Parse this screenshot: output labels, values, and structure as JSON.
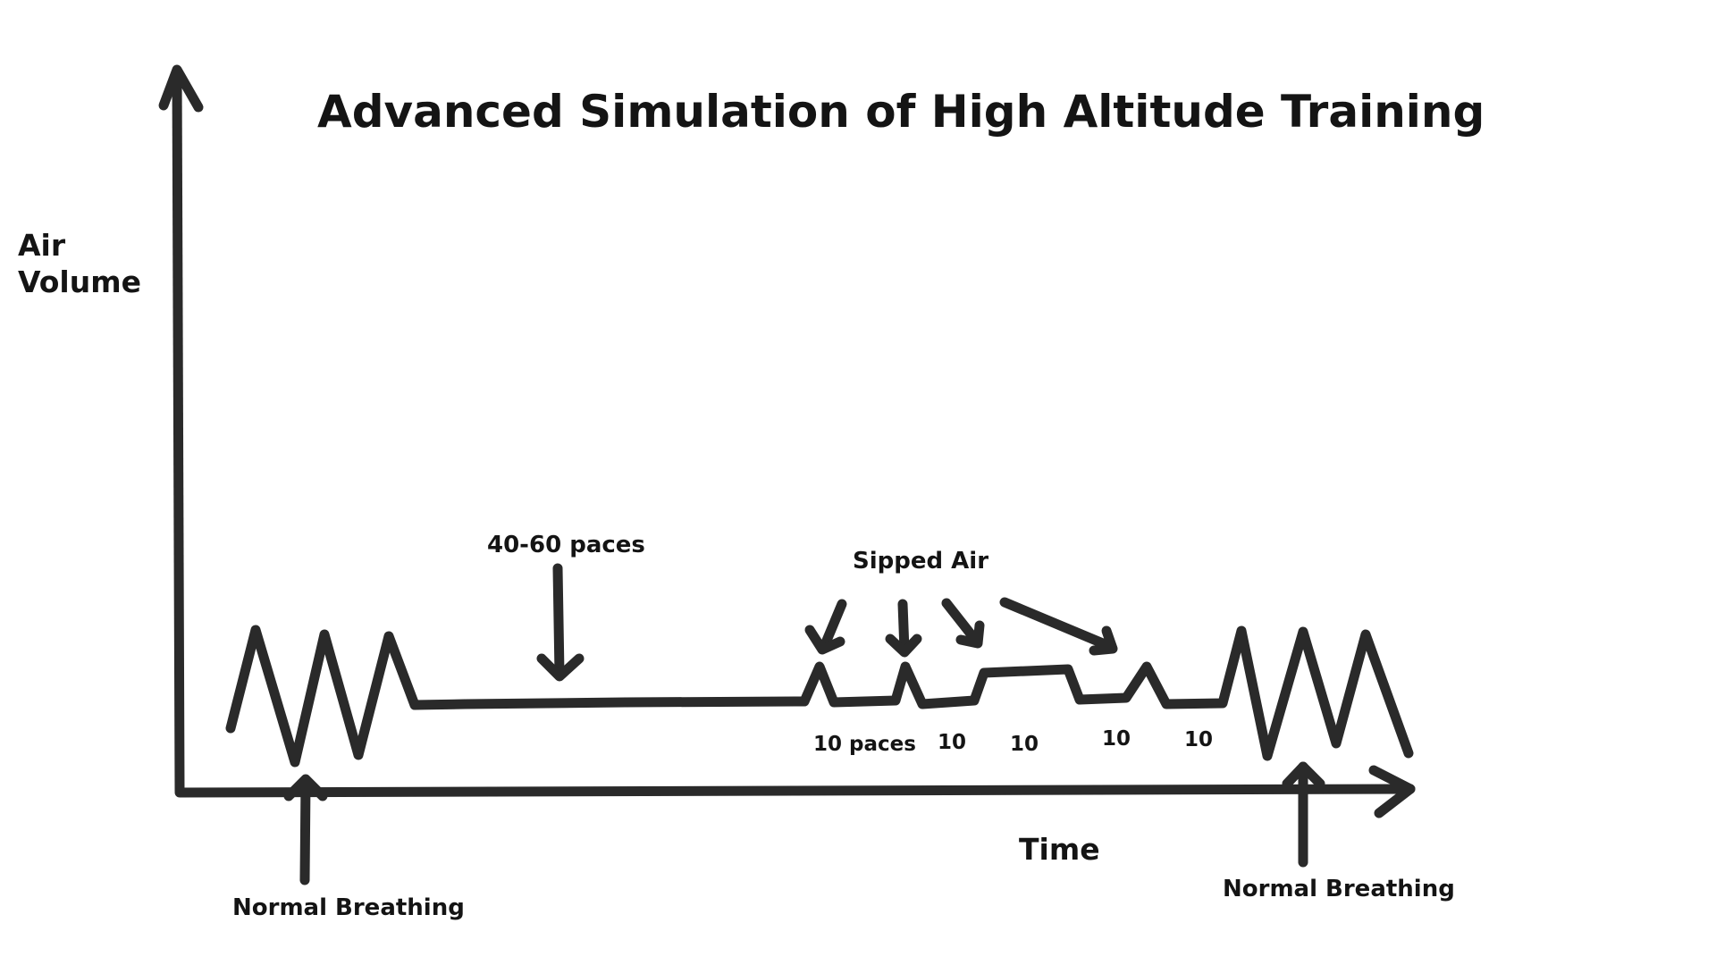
{
  "title": "Advanced Simulation of High Altitude Training",
  "axes": {
    "y_label_line1": "Air",
    "y_label_line2": "Volume",
    "x_label": "Time"
  },
  "annotations": {
    "normal_breathing_left": "Normal Breathing",
    "normal_breathing_right": "Normal Breathing",
    "hold_paces": "40-60 paces",
    "sipped_air": "Sipped Air",
    "interval_1": "10 paces",
    "interval_2": "10",
    "interval_3": "10",
    "interval_4": "10",
    "interval_5": "10"
  }
}
